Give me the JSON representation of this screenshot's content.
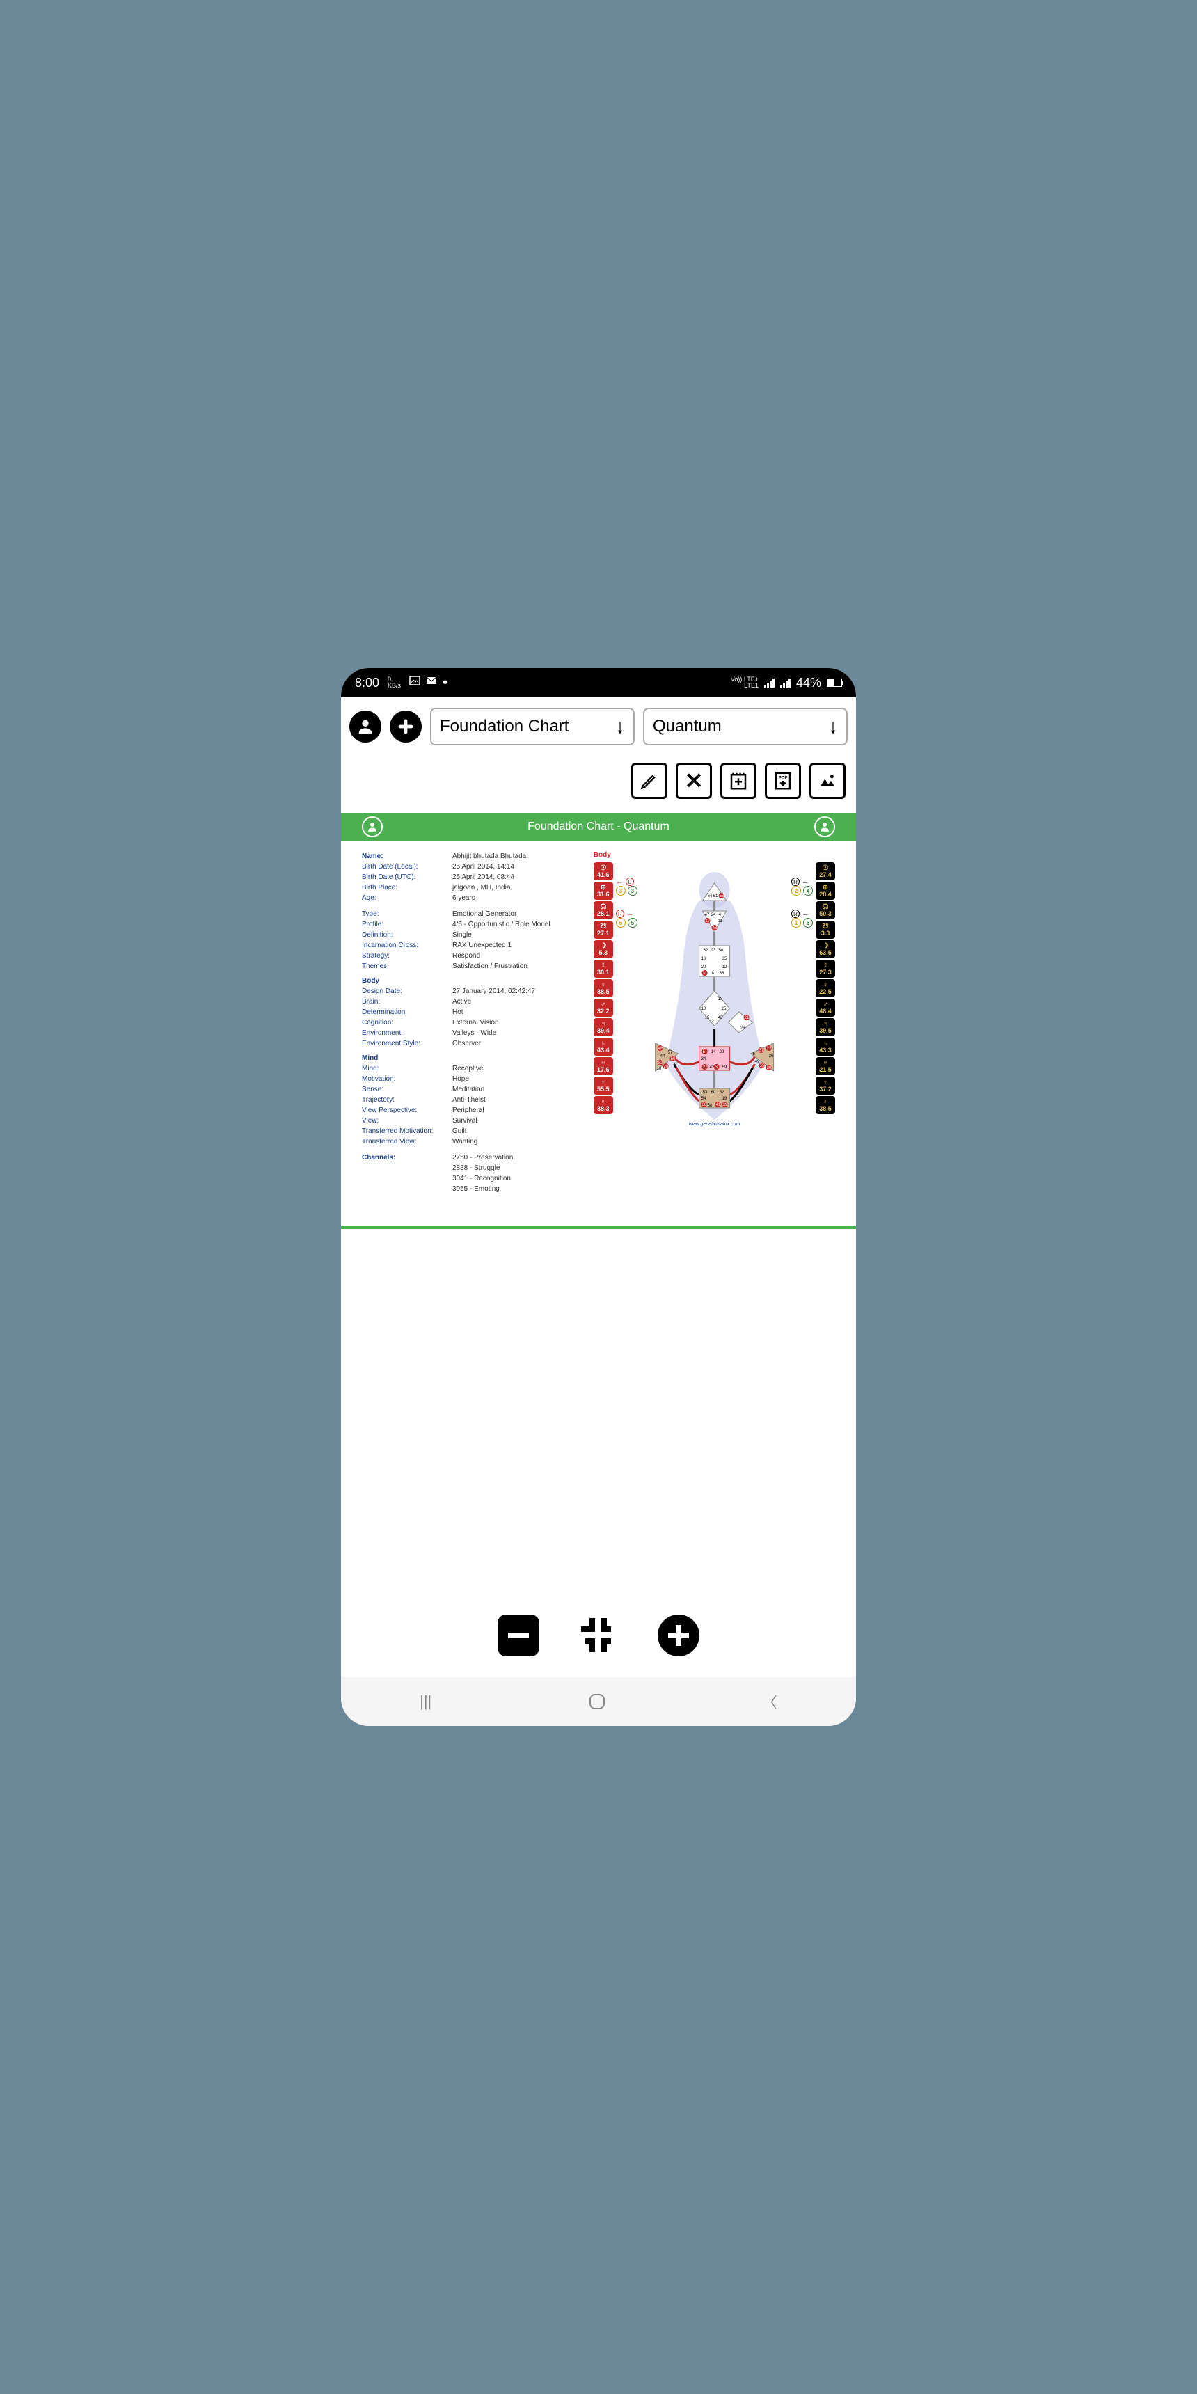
{
  "statusBar": {
    "time": "8:00",
    "kbPerSec": "0",
    "kbLabel": "KB/s",
    "lteLabel": "Vo)) LTE+\nLTE1",
    "battery": "44%",
    "batteryLevel": 44
  },
  "topToolbar": {
    "dropdown1": "Foundation Chart",
    "dropdown2": "Quantum"
  },
  "greenHeader": {
    "title": "Foundation Chart - Quantum"
  },
  "personInfo": {
    "nameSection": {
      "title": "Name:",
      "name": "Abhijit bhutada Bhutada",
      "rows": [
        {
          "label": "Birth Date (Local):",
          "value": "25 April 2014, 14:14"
        },
        {
          "label": "Birth Date (UTC):",
          "value": "25 April 2014, 08:44"
        },
        {
          "label": "Birth Place:",
          "value": "jalgoan , MH, India"
        },
        {
          "label": "Age:",
          "value": "6 years"
        }
      ]
    },
    "typeSection": {
      "rows": [
        {
          "label": "Type:",
          "value": "Emotional Generator"
        },
        {
          "label": "Profile:",
          "value": "4/6 - Opportunistic / Role Model"
        },
        {
          "label": "Definition:",
          "value": "Single"
        },
        {
          "label": "Incarnation Cross:",
          "value": "RAX Unexpected 1"
        },
        {
          "label": "Strategy:",
          "value": "Respond"
        },
        {
          "label": "Themes:",
          "value": "Satisfaction / Frustration"
        }
      ]
    },
    "bodySection": {
      "title": "Body",
      "rows": [
        {
          "label": "Design Date:",
          "value": "27 January 2014, 02:42:47"
        },
        {
          "label": "Brain:",
          "value": "Active"
        },
        {
          "label": "Determination:",
          "value": "Hot"
        },
        {
          "label": "Cognition:",
          "value": "External Vision"
        },
        {
          "label": "Environment:",
          "value": "Valleys - Wide"
        },
        {
          "label": "Environment Style:",
          "value": "Observer"
        }
      ]
    },
    "mindSection": {
      "title": "Mind",
      "rows": [
        {
          "label": "Mind:",
          "value": "Receptive"
        },
        {
          "label": "Motivation:",
          "value": "Hope"
        },
        {
          "label": "Sense:",
          "value": "Meditation"
        },
        {
          "label": "Trajectory:",
          "value": "Anti-Theist"
        },
        {
          "label": "View Perspective:",
          "value": "Peripheral"
        },
        {
          "label": "View:",
          "value": "Survival"
        },
        {
          "label": "Transferred Motivation:",
          "value": "Guilt"
        },
        {
          "label": "Transferred View:",
          "value": "Wanting"
        }
      ]
    },
    "channelsSection": {
      "title": "Channels:",
      "values": [
        "2750 - Preservation",
        "2838 - Struggle",
        "3041 - Recognition",
        "3955 - Emoting"
      ]
    }
  },
  "bodyGraph": {
    "title": "Body",
    "footer": "www.geneticmatrix.com",
    "leftGates": [
      {
        "symbol": "☉",
        "value": "41.6"
      },
      {
        "symbol": "⊕",
        "value": "31.6"
      },
      {
        "symbol": "☊",
        "value": "28.1"
      },
      {
        "symbol": "☋",
        "value": "27.1"
      },
      {
        "symbol": "☽",
        "value": "5.3"
      },
      {
        "symbol": "☿",
        "value": "30.1"
      },
      {
        "symbol": "♀",
        "value": "38.5"
      },
      {
        "symbol": "♂",
        "value": "32.2"
      },
      {
        "symbol": "♃",
        "value": "39.4"
      },
      {
        "symbol": "♄",
        "value": "43.4"
      },
      {
        "symbol": "♅",
        "value": "17.6"
      },
      {
        "symbol": "♆",
        "value": "55.5"
      },
      {
        "symbol": "♇",
        "value": "38.3"
      }
    ],
    "rightGates": [
      {
        "symbol": "☉",
        "value": "27.4"
      },
      {
        "symbol": "⊕",
        "value": "28.4"
      },
      {
        "symbol": "☊",
        "value": "50.3"
      },
      {
        "symbol": "☋",
        "value": "3.3"
      },
      {
        "symbol": "☽",
        "value": "63.5"
      },
      {
        "symbol": "☿",
        "value": "27.3"
      },
      {
        "symbol": "♀",
        "value": "22.5"
      },
      {
        "symbol": "♂",
        "value": "48.4"
      },
      {
        "symbol": "♃",
        "value": "39.5"
      },
      {
        "symbol": "♄",
        "value": "43.3"
      },
      {
        "symbol": "♅",
        "value": "21.5"
      },
      {
        "symbol": "♆",
        "value": "37.2"
      },
      {
        "symbol": "♇",
        "value": "38.5"
      }
    ],
    "arrowIndicators": {
      "leftTop": {
        "dir": "L",
        "nums": [
          "3",
          "3"
        ]
      },
      "leftBottom": {
        "dir": "R",
        "nums": [
          "5",
          "5"
        ]
      },
      "rightTop": {
        "dir": "R",
        "nums": [
          "2",
          "4"
        ]
      },
      "rightBottom": {
        "dir": "R",
        "nums": [
          "1",
          "6"
        ]
      }
    },
    "headGates": [
      "64",
      "61",
      "63"
    ],
    "ajnaGates": [
      "47",
      "24",
      "4",
      "17",
      "11",
      "43"
    ],
    "throatGates": [
      "62",
      "23",
      "56",
      "16",
      "35",
      "20",
      "12",
      "31",
      "8",
      "33"
    ],
    "gGates": [
      "7",
      "13",
      "1",
      "10",
      "25",
      "15",
      "2",
      "46"
    ],
    "sacralGates": [
      "5",
      "14",
      "29",
      "34",
      "27",
      "42",
      "3",
      "9",
      "59"
    ],
    "rootGates": [
      "53",
      "60",
      "52",
      "54",
      "19",
      "38",
      "39",
      "58",
      "41"
    ],
    "spleenGates": [
      "48",
      "57",
      "44",
      "50",
      "32",
      "28",
      "18"
    ],
    "solarGates": [
      "6",
      "37",
      "22",
      "36",
      "30",
      "55",
      "49"
    ],
    "heartGates": [
      "21",
      "40",
      "26",
      "51"
    ]
  },
  "colors": {
    "green": "#4caf50",
    "red": "#c62828",
    "black": "#000000",
    "blue": "#1a3e8c",
    "centerFill": "#f8bbd0",
    "centerTan": "#d4b896",
    "bodyBlue": "#c5cae9"
  }
}
